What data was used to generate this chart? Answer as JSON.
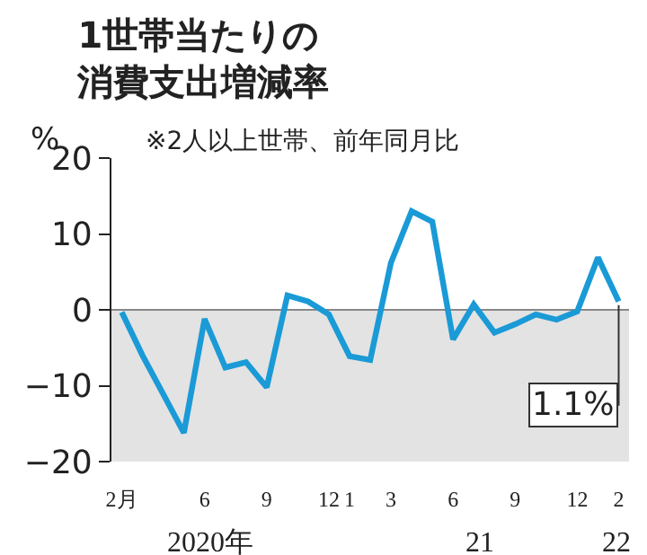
{
  "chart_data": {
    "type": "line",
    "title": "1世帯当たりの消費支出増減率",
    "subtitle": "※2人以上世帯、前年同月比",
    "ylabel": "%",
    "categories": [
      "2月",
      null,
      null,
      null,
      "6",
      null,
      null,
      "9",
      null,
      null,
      "12",
      "1",
      null,
      "3",
      null,
      null,
      "6",
      null,
      null,
      "9",
      null,
      null,
      "12",
      null,
      "2"
    ],
    "series": [
      {
        "color": "#1a9ad6",
        "values": [
          -0.3,
          -6.0,
          -11.1,
          -16.2,
          -1.2,
          -7.6,
          -6.9,
          -10.2,
          1.9,
          1.1,
          -0.6,
          -6.1,
          -6.6,
          6.2,
          13.0,
          11.6,
          -3.9,
          0.7,
          -3.0,
          -1.9,
          -0.6,
          -1.3,
          -0.2,
          6.9,
          1.1
        ]
      }
    ],
    "ylim": [
      -20,
      20
    ],
    "yticks": [
      {
        "value": -20,
        "label": "−20"
      },
      {
        "value": -10,
        "label": "−10"
      },
      0,
      10,
      20
    ],
    "bands": [
      {
        "axis": "y",
        "from": -20,
        "to": 0,
        "color": "#e3e3e3"
      }
    ],
    "ref_lines": [
      {
        "axis": "y",
        "value": 0,
        "color": "#888888"
      }
    ],
    "annotations": [
      {
        "text": "1.1%",
        "x": "2",
        "y": 1.1
      },
      "2020年",
      "21",
      "22"
    ],
    "grid": false,
    "legend": false,
    "marker": "none",
    "line_style": "solid"
  }
}
